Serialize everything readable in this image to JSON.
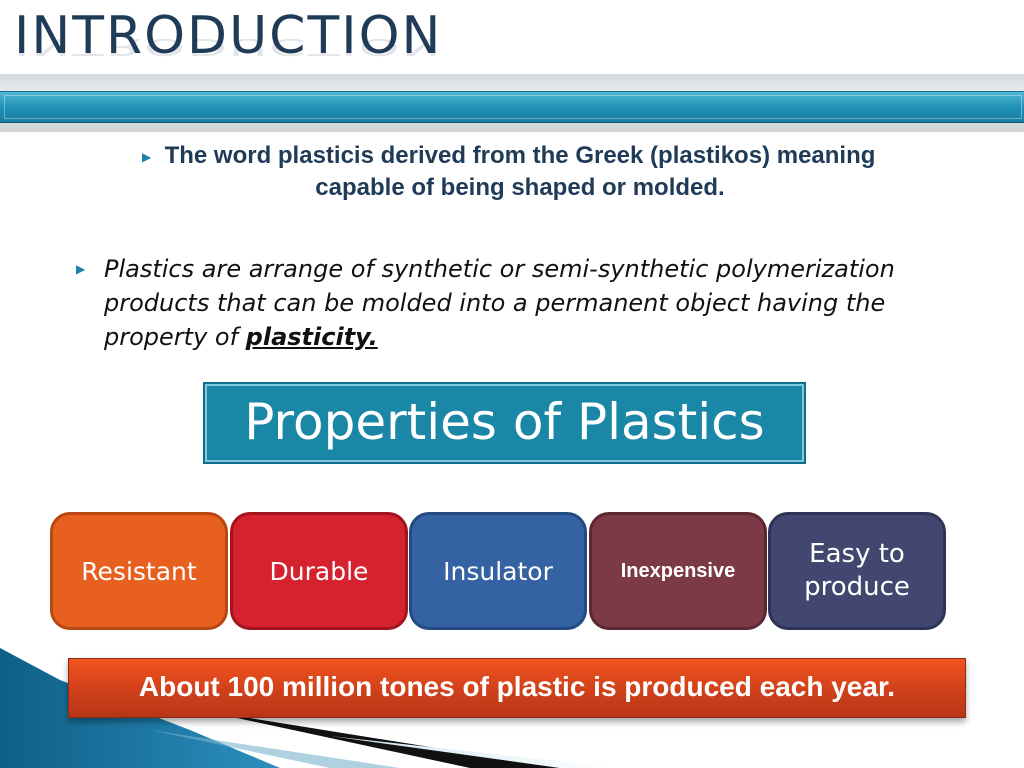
{
  "slide": {
    "title": "INTRODUCTION",
    "bullet1": "The word plasticis derived from the Greek (plastikos) meaning capable of being shaped or molded.",
    "bullet2_text": "Plastics are arrange of synthetic or semi-synthetic polymerization products that can be molded into a permanent object having the property of ",
    "bullet2_emphasis": "plasticity.",
    "properties_title": "Properties of Plastics",
    "properties": [
      "Resistant",
      "Durable",
      "Insulator",
      "Inexpensive",
      "Easy to produce"
    ],
    "banner": "About 100 million tones of plastic is produced each year."
  },
  "colors": {
    "title": "#1f3b57",
    "header_band": "#1e8fb5",
    "properties_box": "#1a87a6",
    "resistant": "#e8601f",
    "durable": "#d5222e",
    "insulator": "#3462a2",
    "inexpensive": "#7c3a46",
    "easy_to_produce": "#42476f",
    "banner": "#d0401b"
  }
}
